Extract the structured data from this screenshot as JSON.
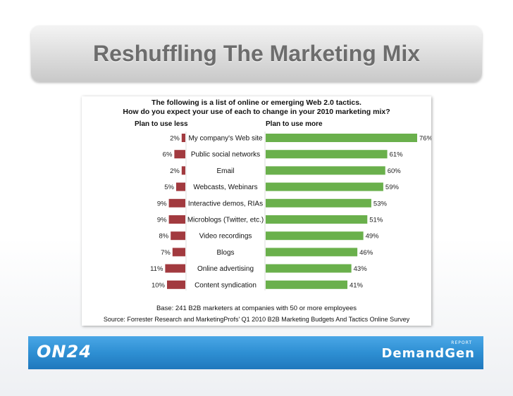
{
  "slide": {
    "title": "Reshuffling The Marketing Mix"
  },
  "footer": {
    "left_logo": "ON24",
    "right_logo": "DemandGen",
    "right_logo_sup": "REPORT"
  },
  "colors": {
    "less": "#a23a3f",
    "more": "#6ab04c",
    "footer_blue": "#2e8fd3"
  },
  "chart_data": {
    "type": "bar",
    "title": "The following is a list of online or emerging Web 2.0 tactics.",
    "subtitle": "How do you expect your use of each to change in your 2010 marketing mix?",
    "left_header": "Plan to use less",
    "right_header": "Plan to use more",
    "categories": [
      "My company's Web site",
      "Public social networks",
      "Email",
      "Webcasts, Webinars",
      "Interactive demos, RIAs",
      "Microblogs (Twitter, etc.)",
      "Video recordings",
      "Blogs",
      "Online advertising",
      "Content syndication"
    ],
    "series": [
      {
        "name": "Plan to use less",
        "values": [
          2,
          6,
          2,
          5,
          9,
          9,
          8,
          7,
          11,
          10
        ],
        "labels": [
          "2%",
          "6%",
          "2%",
          "5%",
          "9%",
          "9%",
          "8%",
          "7%",
          "11%",
          "10%"
        ]
      },
      {
        "name": "Plan to use more",
        "values": [
          76,
          61,
          60,
          59,
          53,
          51,
          49,
          46,
          43,
          41
        ],
        "labels": [
          "76%",
          "61%",
          "60%",
          "59%",
          "53%",
          "51%",
          "49%",
          "46%",
          "43%",
          "41%"
        ]
      }
    ],
    "base_note": "Base: 241 B2B marketers at companies with 50 or more employees",
    "source_note": "Source: Forrester Research and MarketingProfs' Q1 2010 B2B Marketing Budgets And Tactics Online Survey"
  }
}
